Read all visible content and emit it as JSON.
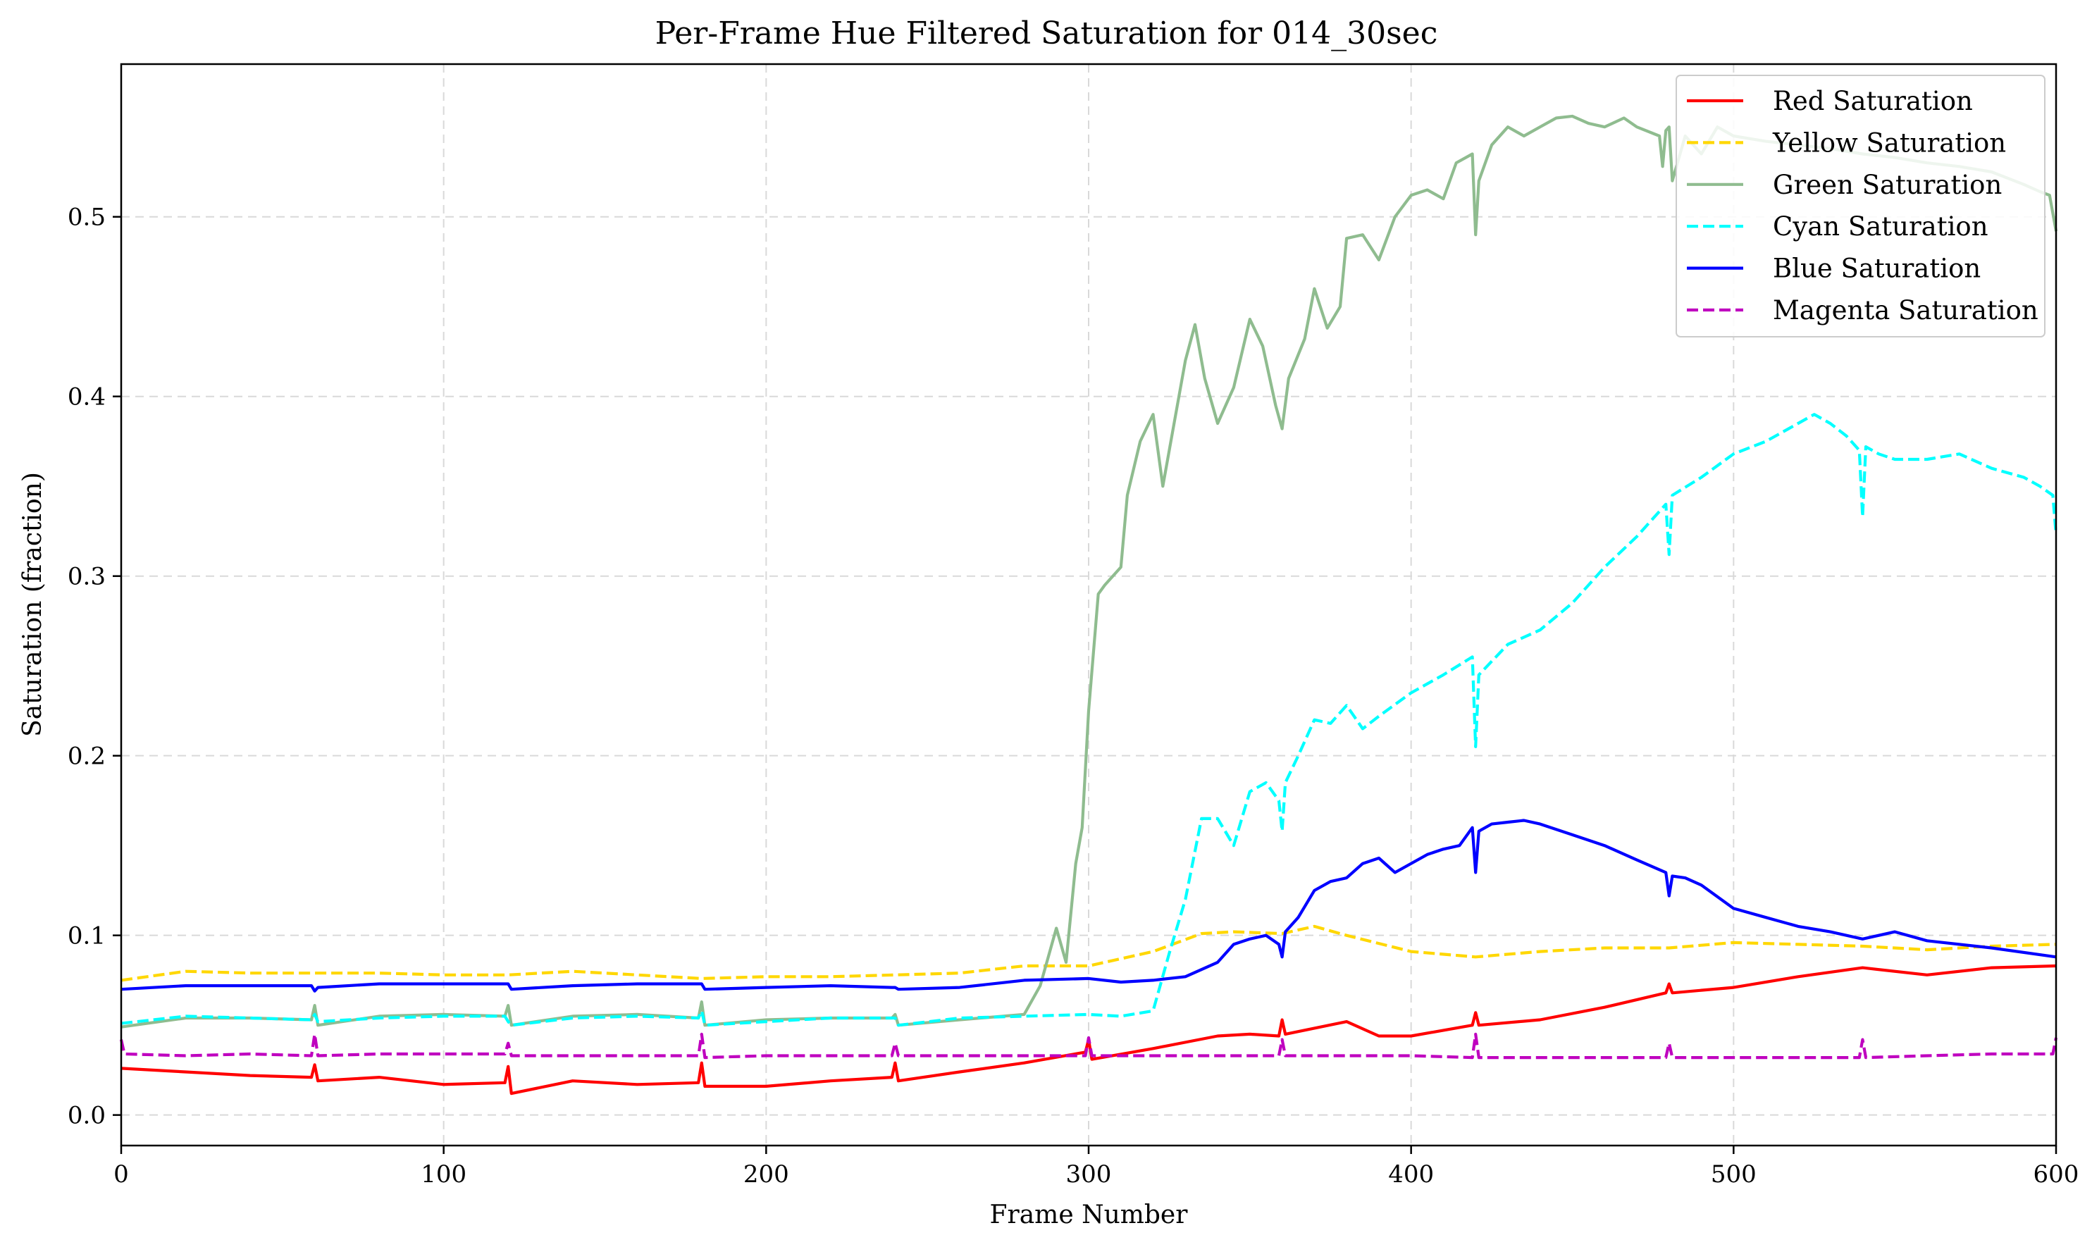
{
  "chart_data": {
    "type": "line",
    "title": "Per-Frame Hue Filtered Saturation for 014_30sec",
    "xlabel": "Frame Number",
    "ylabel": "Saturation (fraction)",
    "xlim": [
      0,
      600
    ],
    "ylim": [
      -0.017,
      0.585
    ],
    "xticks": [
      0,
      100,
      200,
      300,
      400,
      500,
      600
    ],
    "yticks": [
      0.0,
      0.1,
      0.2,
      0.3,
      0.4,
      0.5
    ],
    "xtick_labels": [
      "0",
      "100",
      "200",
      "300",
      "400",
      "500",
      "600"
    ],
    "ytick_labels": [
      "0.0",
      "0.1",
      "0.2",
      "0.3",
      "0.4",
      "0.5"
    ],
    "grid": true,
    "legend_position": "top-right",
    "series": [
      {
        "name": "Red Saturation",
        "color": "#ff0000",
        "dash": "solid",
        "x": [
          0,
          20,
          40,
          59,
          60,
          61,
          80,
          100,
          119,
          120,
          121,
          140,
          160,
          179,
          180,
          181,
          200,
          220,
          239,
          240,
          241,
          260,
          280,
          299,
          300,
          301,
          320,
          340,
          350,
          359,
          360,
          361,
          380,
          390,
          400,
          419,
          420,
          421,
          440,
          460,
          479,
          480,
          481,
          500,
          520,
          540,
          560,
          580,
          600
        ],
        "y": [
          0.026,
          0.024,
          0.022,
          0.021,
          0.028,
          0.019,
          0.021,
          0.017,
          0.018,
          0.027,
          0.012,
          0.019,
          0.017,
          0.018,
          0.029,
          0.016,
          0.016,
          0.019,
          0.021,
          0.029,
          0.019,
          0.024,
          0.029,
          0.035,
          0.042,
          0.031,
          0.037,
          0.044,
          0.045,
          0.044,
          0.053,
          0.045,
          0.052,
          0.044,
          0.044,
          0.05,
          0.057,
          0.05,
          0.053,
          0.06,
          0.068,
          0.073,
          0.068,
          0.071,
          0.077,
          0.082,
          0.078,
          0.082,
          0.083
        ]
      },
      {
        "name": "Yellow Saturation",
        "color": "#ffd700",
        "dash": "dashed",
        "x": [
          0,
          20,
          40,
          60,
          80,
          100,
          120,
          140,
          160,
          180,
          200,
          220,
          240,
          260,
          280,
          300,
          320,
          335,
          345,
          360,
          370,
          380,
          400,
          420,
          440,
          460,
          480,
          500,
          520,
          540,
          560,
          580,
          600
        ],
        "y": [
          0.075,
          0.08,
          0.079,
          0.079,
          0.079,
          0.078,
          0.078,
          0.08,
          0.078,
          0.076,
          0.077,
          0.077,
          0.078,
          0.079,
          0.083,
          0.083,
          0.091,
          0.101,
          0.102,
          0.101,
          0.105,
          0.1,
          0.091,
          0.088,
          0.091,
          0.093,
          0.093,
          0.096,
          0.095,
          0.094,
          0.092,
          0.094,
          0.095
        ]
      },
      {
        "name": "Green Saturation",
        "color": "#8fbc8f",
        "dash": "solid",
        "x": [
          0,
          20,
          40,
          59,
          60,
          61,
          80,
          100,
          119,
          120,
          121,
          140,
          160,
          179,
          180,
          181,
          200,
          220,
          239,
          240,
          241,
          260,
          280,
          285,
          290,
          293,
          296,
          298,
          300,
          303,
          305,
          310,
          312,
          316,
          320,
          323,
          326,
          330,
          333,
          336,
          340,
          345,
          350,
          354,
          358,
          360,
          362,
          367,
          370,
          374,
          378,
          380,
          385,
          390,
          395,
          400,
          405,
          410,
          414,
          419,
          420,
          421,
          425,
          430,
          435,
          440,
          445,
          450,
          455,
          460,
          466,
          470,
          477,
          478,
          479,
          480,
          481,
          485,
          490,
          495,
          500,
          510,
          520,
          530,
          540,
          550,
          560,
          570,
          580,
          590,
          595,
          598,
          600
        ],
        "y": [
          0.049,
          0.054,
          0.054,
          0.053,
          0.061,
          0.05,
          0.055,
          0.056,
          0.055,
          0.061,
          0.05,
          0.055,
          0.056,
          0.054,
          0.063,
          0.05,
          0.053,
          0.054,
          0.054,
          0.056,
          0.05,
          0.053,
          0.056,
          0.072,
          0.104,
          0.085,
          0.14,
          0.16,
          0.225,
          0.29,
          0.295,
          0.305,
          0.345,
          0.375,
          0.39,
          0.35,
          0.38,
          0.42,
          0.44,
          0.41,
          0.385,
          0.405,
          0.443,
          0.428,
          0.395,
          0.382,
          0.41,
          0.432,
          0.46,
          0.438,
          0.45,
          0.488,
          0.49,
          0.476,
          0.5,
          0.512,
          0.515,
          0.51,
          0.53,
          0.535,
          0.49,
          0.52,
          0.54,
          0.55,
          0.545,
          0.55,
          0.555,
          0.556,
          0.552,
          0.55,
          0.555,
          0.55,
          0.545,
          0.528,
          0.548,
          0.55,
          0.52,
          0.545,
          0.535,
          0.55,
          0.545,
          0.542,
          0.54,
          0.538,
          0.535,
          0.533,
          0.53,
          0.528,
          0.525,
          0.518,
          0.514,
          0.512,
          0.492
        ]
      },
      {
        "name": "Cyan Saturation",
        "color": "#00ffff",
        "dash": "dashed",
        "x": [
          0,
          20,
          40,
          59,
          60,
          61,
          80,
          100,
          119,
          120,
          121,
          140,
          160,
          179,
          180,
          181,
          200,
          220,
          239,
          240,
          241,
          260,
          280,
          300,
          310,
          320,
          325,
          330,
          335,
          340,
          345,
          350,
          355,
          359,
          360,
          361,
          365,
          370,
          375,
          380,
          385,
          390,
          400,
          410,
          419,
          420,
          421,
          430,
          440,
          450,
          460,
          470,
          479,
          480,
          481,
          490,
          500,
          510,
          520,
          525,
          530,
          535,
          539,
          540,
          541,
          545,
          550,
          560,
          570,
          580,
          590,
          595,
          599,
          600
        ],
        "y": [
          0.051,
          0.055,
          0.054,
          0.053,
          0.056,
          0.052,
          0.054,
          0.055,
          0.055,
          0.052,
          0.05,
          0.054,
          0.055,
          0.054,
          0.058,
          0.05,
          0.052,
          0.054,
          0.054,
          0.054,
          0.05,
          0.054,
          0.055,
          0.056,
          0.055,
          0.058,
          0.09,
          0.12,
          0.165,
          0.165,
          0.15,
          0.18,
          0.185,
          0.175,
          0.158,
          0.185,
          0.2,
          0.22,
          0.218,
          0.228,
          0.215,
          0.222,
          0.235,
          0.245,
          0.255,
          0.205,
          0.245,
          0.262,
          0.27,
          0.285,
          0.305,
          0.322,
          0.34,
          0.312,
          0.345,
          0.355,
          0.368,
          0.375,
          0.385,
          0.39,
          0.385,
          0.378,
          0.37,
          0.333,
          0.372,
          0.368,
          0.365,
          0.365,
          0.368,
          0.36,
          0.355,
          0.35,
          0.345,
          0.323
        ]
      },
      {
        "name": "Blue Saturation",
        "color": "#0000ff",
        "dash": "solid",
        "x": [
          0,
          20,
          40,
          59,
          60,
          61,
          80,
          100,
          119,
          120,
          121,
          140,
          160,
          179,
          180,
          181,
          200,
          220,
          239,
          240,
          241,
          260,
          280,
          300,
          310,
          320,
          330,
          340,
          345,
          350,
          355,
          359,
          360,
          361,
          365,
          370,
          375,
          380,
          385,
          390,
          395,
          400,
          405,
          410,
          415,
          419,
          420,
          421,
          425,
          430,
          435,
          440,
          450,
          460,
          470,
          479,
          480,
          481,
          485,
          490,
          500,
          510,
          520,
          530,
          540,
          550,
          560,
          580,
          600
        ],
        "y": [
          0.07,
          0.072,
          0.072,
          0.072,
          0.069,
          0.071,
          0.073,
          0.073,
          0.073,
          0.073,
          0.07,
          0.072,
          0.073,
          0.073,
          0.073,
          0.07,
          0.071,
          0.072,
          0.071,
          0.071,
          0.07,
          0.071,
          0.075,
          0.076,
          0.074,
          0.075,
          0.077,
          0.085,
          0.095,
          0.098,
          0.1,
          0.095,
          0.088,
          0.102,
          0.11,
          0.125,
          0.13,
          0.132,
          0.14,
          0.143,
          0.135,
          0.14,
          0.145,
          0.148,
          0.15,
          0.16,
          0.135,
          0.158,
          0.162,
          0.163,
          0.164,
          0.162,
          0.156,
          0.15,
          0.142,
          0.135,
          0.122,
          0.133,
          0.132,
          0.128,
          0.115,
          0.11,
          0.105,
          0.102,
          0.098,
          0.102,
          0.097,
          0.093,
          0.088
        ]
      },
      {
        "name": "Magenta Saturation",
        "color": "#bf00bf",
        "dash": "dashed",
        "x": [
          0,
          1,
          20,
          40,
          59,
          60,
          61,
          80,
          100,
          119,
          120,
          121,
          140,
          160,
          179,
          180,
          181,
          200,
          220,
          239,
          240,
          241,
          260,
          280,
          299,
          300,
          301,
          320,
          340,
          359,
          360,
          361,
          380,
          400,
          419,
          420,
          421,
          440,
          460,
          479,
          480,
          481,
          500,
          520,
          539,
          540,
          541,
          560,
          580,
          599,
          600
        ],
        "y": [
          0.042,
          0.034,
          0.033,
          0.034,
          0.033,
          0.045,
          0.033,
          0.034,
          0.034,
          0.034,
          0.04,
          0.033,
          0.033,
          0.033,
          0.033,
          0.045,
          0.032,
          0.033,
          0.033,
          0.033,
          0.04,
          0.033,
          0.033,
          0.033,
          0.033,
          0.043,
          0.033,
          0.033,
          0.033,
          0.033,
          0.042,
          0.033,
          0.033,
          0.033,
          0.032,
          0.045,
          0.032,
          0.032,
          0.032,
          0.032,
          0.04,
          0.032,
          0.032,
          0.032,
          0.032,
          0.042,
          0.032,
          0.033,
          0.034,
          0.034,
          0.043
        ]
      }
    ]
  }
}
